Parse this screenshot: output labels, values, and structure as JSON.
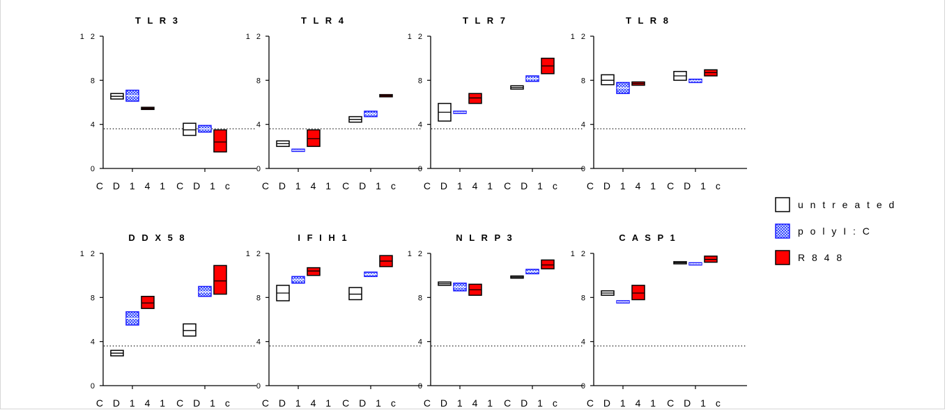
{
  "colors": {
    "untreated": "#000000",
    "polyIC": "#1a1aff",
    "polyIC_fill": "#b8c4ff",
    "R848": "#ff0000"
  },
  "legend": [
    {
      "key": "untreated",
      "label": "u n t r e a t e d"
    },
    {
      "key": "polyIC",
      "label": "p o l y I : C"
    },
    {
      "key": "R848",
      "label": "R 8 4 8"
    }
  ],
  "chart_data": [
    {
      "type": "box",
      "title": "T L R 3",
      "categories": [
        "C D 1 4 1",
        "C D 1 c"
      ],
      "yticks": [
        "0",
        "4",
        "8",
        "1 2"
      ],
      "ylim": [
        0,
        12
      ],
      "dotted_line": 3.6,
      "series": [
        {
          "name": "u n t r e a t e d",
          "boxes": [
            {
              "low": 6.3,
              "mid": 6.55,
              "high": 6.8
            },
            {
              "low": 3.0,
              "mid": 3.5,
              "high": 4.1
            }
          ]
        },
        {
          "name": "p o l y I : C",
          "boxes": [
            {
              "low": 6.1,
              "mid": 6.6,
              "high": 7.1
            },
            {
              "low": 3.3,
              "mid": 3.6,
              "high": 3.9
            }
          ]
        },
        {
          "name": "R 8 4 8",
          "boxes": [
            {
              "low": 5.35,
              "mid": 5.45,
              "high": 5.55
            },
            {
              "low": 1.5,
              "mid": 2.4,
              "high": 3.5
            }
          ]
        }
      ]
    },
    {
      "type": "box",
      "title": "T L R 4",
      "categories": [
        "C D 1 4 1",
        "C D 1 c"
      ],
      "yticks": [
        "0",
        "4",
        "8",
        "1 2"
      ],
      "ylim": [
        0,
        12
      ],
      "dotted_line": 3.6,
      "series": [
        {
          "name": "u n t r e a t e d",
          "boxes": [
            {
              "low": 2.0,
              "mid": 2.25,
              "high": 2.5
            },
            {
              "low": 4.2,
              "mid": 4.45,
              "high": 4.7
            }
          ]
        },
        {
          "name": "p o l y I : C",
          "boxes": [
            {
              "low": 1.55,
              "mid": 1.65,
              "high": 1.75
            },
            {
              "low": 4.7,
              "mid": 4.95,
              "high": 5.2
            }
          ]
        },
        {
          "name": "R 8 4 8",
          "boxes": [
            {
              "low": 2.0,
              "mid": 2.7,
              "high": 3.5
            },
            {
              "low": 6.5,
              "mid": 6.6,
              "high": 6.7
            }
          ]
        }
      ]
    },
    {
      "type": "box",
      "title": "T L R 7",
      "categories": [
        "C D 1 4 1",
        "C D 1 c"
      ],
      "yticks": [
        "0",
        "4",
        "8",
        "1 2"
      ],
      "ylim": [
        0,
        12
      ],
      "dotted_line": 3.6,
      "series": [
        {
          "name": "u n t r e a t e d",
          "boxes": [
            {
              "low": 4.3,
              "mid": 5.1,
              "high": 5.9
            },
            {
              "low": 7.2,
              "mid": 7.35,
              "high": 7.5
            }
          ]
        },
        {
          "name": "p o l y I : C",
          "boxes": [
            {
              "low": 5.0,
              "mid": 5.1,
              "high": 5.2
            },
            {
              "low": 7.9,
              "mid": 8.15,
              "high": 8.4
            }
          ]
        },
        {
          "name": "R 8 4 8",
          "boxes": [
            {
              "low": 5.9,
              "mid": 6.4,
              "high": 6.8
            },
            {
              "low": 8.6,
              "mid": 9.3,
              "high": 10.0
            }
          ]
        }
      ]
    },
    {
      "type": "box",
      "title": "T L R 8",
      "categories": [
        "C D 1 4 1",
        "C D 1 c"
      ],
      "yticks": [
        "0",
        "4",
        "8",
        "1 2"
      ],
      "ylim": [
        0,
        12
      ],
      "dotted_line": 3.6,
      "series": [
        {
          "name": "u n t r e a t e d",
          "boxes": [
            {
              "low": 7.6,
              "mid": 8.0,
              "high": 8.5
            },
            {
              "low": 8.0,
              "mid": 8.4,
              "high": 8.8
            }
          ]
        },
        {
          "name": "p o l y I : C",
          "boxes": [
            {
              "low": 6.8,
              "mid": 7.3,
              "high": 7.8
            },
            {
              "low": 7.8,
              "mid": 7.95,
              "high": 8.1
            }
          ]
        },
        {
          "name": "R 8 4 8",
          "boxes": [
            {
              "low": 7.55,
              "mid": 7.7,
              "high": 7.85
            },
            {
              "low": 8.4,
              "mid": 8.7,
              "high": 8.95
            }
          ]
        }
      ]
    },
    {
      "type": "box",
      "title": "D D X 5 8",
      "categories": [
        "C D 1 4 1",
        "C D 1 c"
      ],
      "yticks": [
        "0",
        "4",
        "8",
        "1 2"
      ],
      "ylim": [
        0,
        12
      ],
      "dotted_line": 3.6,
      "series": [
        {
          "name": "u n t r e a t e d",
          "boxes": [
            {
              "low": 2.7,
              "mid": 2.95,
              "high": 3.2
            },
            {
              "low": 4.5,
              "mid": 5.0,
              "high": 5.6
            }
          ]
        },
        {
          "name": "p o l y I : C",
          "boxes": [
            {
              "low": 5.5,
              "mid": 6.1,
              "high": 6.7
            },
            {
              "low": 8.1,
              "mid": 8.5,
              "high": 9.0
            }
          ]
        },
        {
          "name": "R 8 4 8",
          "boxes": [
            {
              "low": 7.0,
              "mid": 7.5,
              "high": 8.1
            },
            {
              "low": 8.3,
              "mid": 9.5,
              "high": 10.9
            }
          ]
        }
      ]
    },
    {
      "type": "box",
      "title": "I F I H 1",
      "categories": [
        "C D 1 4 1",
        "C D 1 c"
      ],
      "yticks": [
        "0",
        "4",
        "8",
        "1 2"
      ],
      "ylim": [
        0,
        12
      ],
      "dotted_line": 3.6,
      "series": [
        {
          "name": "u n t r e a t e d",
          "boxes": [
            {
              "low": 7.7,
              "mid": 8.4,
              "high": 9.1
            },
            {
              "low": 7.8,
              "mid": 8.3,
              "high": 8.9
            }
          ]
        },
        {
          "name": "p o l y I : C",
          "boxes": [
            {
              "low": 9.3,
              "mid": 9.6,
              "high": 9.9
            },
            {
              "low": 9.9,
              "mid": 10.1,
              "high": 10.3
            }
          ]
        },
        {
          "name": "R 8 4 8",
          "boxes": [
            {
              "low": 10.0,
              "mid": 10.4,
              "high": 10.7
            },
            {
              "low": 10.8,
              "mid": 11.3,
              "high": 11.8
            }
          ]
        }
      ]
    },
    {
      "type": "box",
      "title": "N L R P 3",
      "categories": [
        "C D 1 4 1",
        "C D 1 c"
      ],
      "yticks": [
        "0",
        "4",
        "8",
        "1 2"
      ],
      "ylim": [
        0,
        12
      ],
      "dotted_line": 3.6,
      "series": [
        {
          "name": "u n t r e a t e d",
          "boxes": [
            {
              "low": 9.1,
              "mid": 9.25,
              "high": 9.4
            },
            {
              "low": 9.75,
              "mid": 9.85,
              "high": 9.95
            }
          ]
        },
        {
          "name": "p o l y I : C",
          "boxes": [
            {
              "low": 8.6,
              "mid": 8.95,
              "high": 9.3
            },
            {
              "low": 10.15,
              "mid": 10.35,
              "high": 10.55
            }
          ]
        },
        {
          "name": "R 8 4 8",
          "boxes": [
            {
              "low": 8.2,
              "mid": 8.7,
              "high": 9.2
            },
            {
              "low": 10.6,
              "mid": 10.95,
              "high": 11.4
            }
          ]
        }
      ]
    },
    {
      "type": "box",
      "title": "C A S P 1",
      "categories": [
        "C D 1 4 1",
        "C D 1 c"
      ],
      "yticks": [
        "0",
        "4",
        "8",
        "1 2"
      ],
      "ylim": [
        0,
        12
      ],
      "dotted_line": 3.6,
      "series": [
        {
          "name": "u n t r e a t e d",
          "boxes": [
            {
              "low": 8.2,
              "mid": 8.4,
              "high": 8.6
            },
            {
              "low": 11.05,
              "mid": 11.15,
              "high": 11.25
            }
          ]
        },
        {
          "name": "p o l y I : C",
          "boxes": [
            {
              "low": 7.5,
              "mid": 7.6,
              "high": 7.7
            },
            {
              "low": 10.95,
              "mid": 11.05,
              "high": 11.15
            }
          ]
        },
        {
          "name": "R 8 4 8",
          "boxes": [
            {
              "low": 7.8,
              "mid": 8.4,
              "high": 9.1
            },
            {
              "low": 11.2,
              "mid": 11.45,
              "high": 11.75
            }
          ]
        }
      ]
    }
  ]
}
